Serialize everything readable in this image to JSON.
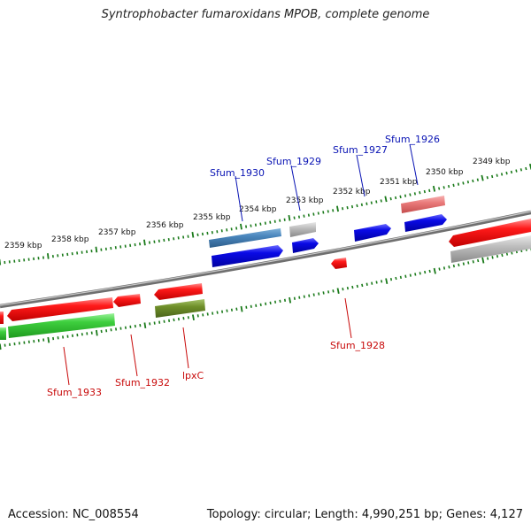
{
  "title": "Syntrophobacter fumaroxidans MPOB, complete genome",
  "footer": {
    "accession": "Accession: NC_008554",
    "topology": "Topology: circular; Length: 4,990,251 bp; Genes: 4,127"
  },
  "colors": {
    "forward_label": "#0a14b4",
    "reverse_label": "#c80a0a",
    "ruler": "#1a7a1a",
    "backbone": "#7a7a7a"
  },
  "scale_labels": [
    "2349 kbp",
    "2350 kbp",
    "2351 kbp",
    "2352 kbp",
    "2353 kbp",
    "2354 kbp",
    "2355 kbp",
    "2356 kbp",
    "2357 kbp",
    "2358 kbp",
    "2359 kbp"
  ],
  "forward_gene_labels": [
    "Sfum_1930",
    "Sfum_1929",
    "Sfum_1927",
    "Sfum_1926"
  ],
  "reverse_gene_labels": [
    "Sfum_1933",
    "Sfum_1932",
    "lpxC",
    "Sfum_1928"
  ]
}
